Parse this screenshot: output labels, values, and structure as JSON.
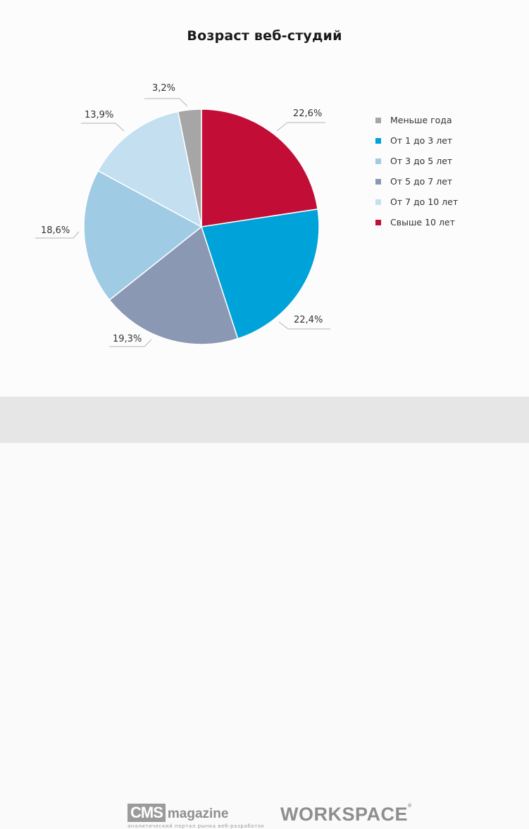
{
  "chart_data": {
    "type": "pie",
    "title": "Возраст веб-студий",
    "start_angle": "12 o'clock, clockwise",
    "slices": [
      {
        "label": "Свыше 10 лет",
        "value": 22.6,
        "display": "22,6%",
        "color": "#c20e37"
      },
      {
        "label": "От 1 до 3 лет",
        "value": 22.4,
        "display": "22,4%",
        "color": "#00a3d9"
      },
      {
        "label": "От 5 до 7 лет",
        "value": 19.3,
        "display": "19,3%",
        "color": "#8b98b3"
      },
      {
        "label": "От 3 до 5 лет",
        "value": 18.6,
        "display": "18,6%",
        "color": "#a0cbe5"
      },
      {
        "label": "От 7 до 10 лет",
        "value": 13.9,
        "display": "13,9%",
        "color": "#c3dff0"
      },
      {
        "label": "Меньше года",
        "value": 3.2,
        "display": "3,2%",
        "color": "#a6a6a6"
      }
    ],
    "legend": {
      "position": "right",
      "entries": [
        {
          "label": "Меньше года",
          "color": "#a6a6a6"
        },
        {
          "label": "От 1 до 3 лет",
          "color": "#00a3d9"
        },
        {
          "label": "От 3 до 5 лет",
          "color": "#a0cbe5"
        },
        {
          "label": "От 5 до 7 лет",
          "color": "#8b98b3"
        },
        {
          "label": "От 7 до 10 лет",
          "color": "#c3dff0"
        },
        {
          "label": "Свыше 10 лет",
          "color": "#c20e37"
        }
      ]
    }
  },
  "footer": {
    "cms_box": "CMS",
    "cms_word": "magazine",
    "cms_tagline": "аналитический портал рынка веб-разработок",
    "workspace": "WORKSPACE",
    "workspace_reg": "®"
  }
}
